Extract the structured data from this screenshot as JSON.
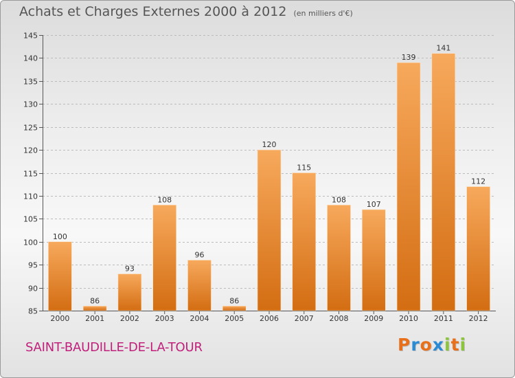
{
  "header": {
    "title": "Achats et Charges Externes 2000 à 2012",
    "subtitle": "(en milliers d'€)"
  },
  "footer": {
    "city": "SAINT-BAUDILLE-DE-LA-TOUR",
    "logo": "Proxiti",
    "logo_colors": [
      "#e8701a",
      "#2a8ad4",
      "#e8701a",
      "#2a8ad4",
      "#8cc43c",
      "#e8701a",
      "#8cc43c"
    ]
  },
  "colors": {
    "bar_light": "#f7a95c",
    "bar_dark": "#d36d12",
    "grid": "#bbbbbb",
    "text": "#333333"
  },
  "chart_data": {
    "type": "bar",
    "categories": [
      "2000",
      "2001",
      "2002",
      "2003",
      "2004",
      "2005",
      "2006",
      "2007",
      "2008",
      "2009",
      "2010",
      "2011",
      "2012"
    ],
    "values": [
      100,
      86,
      93,
      108,
      96,
      86,
      120,
      115,
      108,
      107,
      139,
      141,
      112
    ],
    "data_labels": [
      "100",
      "86",
      "93",
      "108",
      "96",
      "86",
      "120",
      "115",
      "108",
      "107",
      "139",
      "141",
      "112"
    ],
    "ylim": [
      85,
      145
    ],
    "yticks": [
      85,
      90,
      95,
      100,
      105,
      110,
      115,
      120,
      125,
      130,
      135,
      140,
      145
    ],
    "grid": true,
    "legend": "none"
  }
}
